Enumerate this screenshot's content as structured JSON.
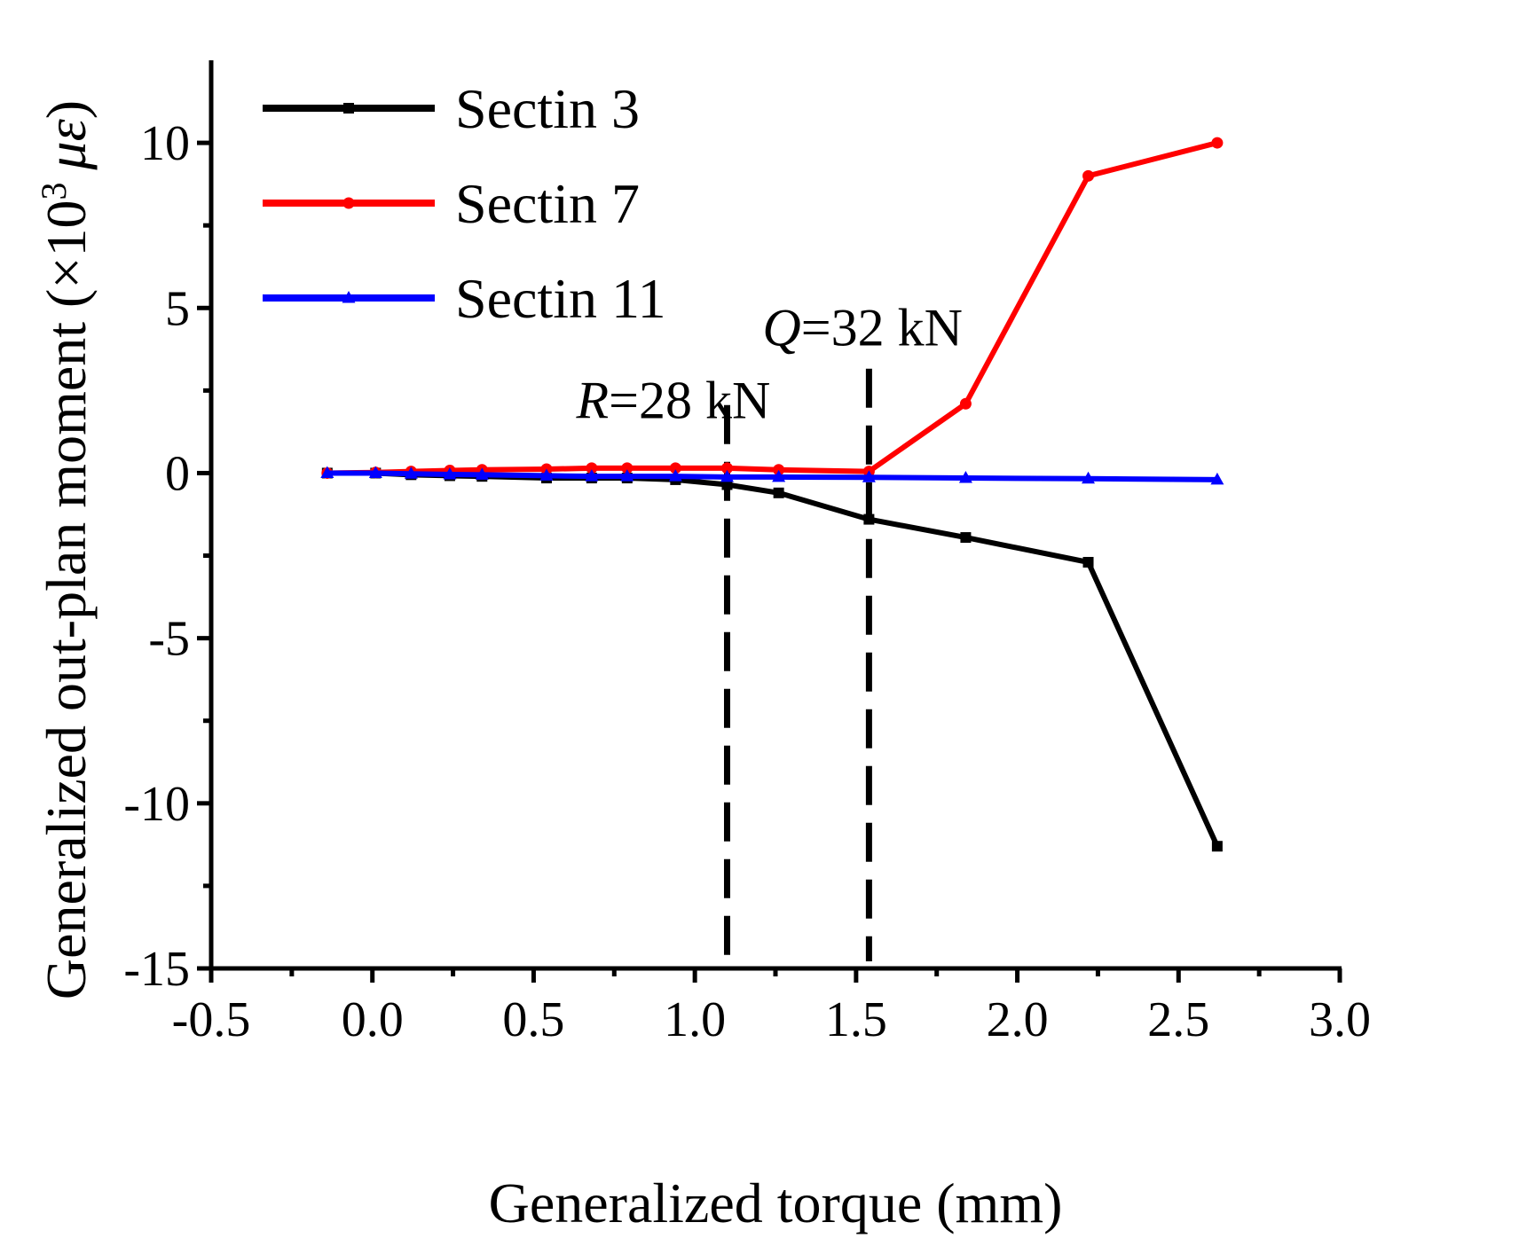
{
  "chart_data": {
    "type": "line",
    "xlabel": "Generalized torque (mm)",
    "ylabel": {
      "main": "Generalized out-plan moment (×10",
      "exponent": "3",
      "unit": "με",
      "close": ")"
    },
    "xlim": [
      -0.5,
      3.0
    ],
    "ylim": [
      -15,
      12.5
    ],
    "xticks": [
      -0.5,
      0.0,
      0.5,
      1.0,
      1.5,
      2.0,
      2.5,
      3.0
    ],
    "xtick_labels": [
      "-0.5",
      "0.0",
      "0.5",
      "1.0",
      "1.5",
      "2.0",
      "2.5",
      "3.0"
    ],
    "yticks": [
      -15,
      -10,
      -5,
      0,
      5,
      10
    ],
    "ytick_labels": [
      "-15",
      "-10",
      "-5",
      "0",
      "5",
      "10"
    ],
    "grid": false,
    "legend_position": "top-left",
    "series": [
      {
        "name": "Sectin 3",
        "color": "#000000",
        "marker": "square",
        "x": [
          -0.14,
          0.01,
          0.12,
          0.24,
          0.34,
          0.54,
          0.68,
          0.79,
          0.94,
          1.1,
          1.26,
          1.54,
          1.84,
          2.22,
          2.62
        ],
        "y": [
          0.0,
          0.0,
          -0.05,
          -0.08,
          -0.1,
          -0.15,
          -0.15,
          -0.15,
          -0.2,
          -0.35,
          -0.6,
          -1.4,
          -1.95,
          -2.7,
          -11.3
        ]
      },
      {
        "name": "Sectin 7",
        "color": "#ff0000",
        "marker": "circle",
        "x": [
          -0.14,
          0.01,
          0.12,
          0.24,
          0.34,
          0.54,
          0.68,
          0.79,
          0.94,
          1.1,
          1.26,
          1.54,
          1.84,
          2.22,
          2.62
        ],
        "y": [
          0.0,
          0.02,
          0.05,
          0.08,
          0.1,
          0.12,
          0.15,
          0.15,
          0.15,
          0.15,
          0.1,
          0.05,
          2.1,
          9.0,
          10.0
        ]
      },
      {
        "name": "Sectin 11",
        "color": "#0000ff",
        "marker": "triangle",
        "x": [
          -0.14,
          0.01,
          0.12,
          0.24,
          0.34,
          0.54,
          0.68,
          0.79,
          0.94,
          1.1,
          1.26,
          1.54,
          1.84,
          2.22,
          2.62
        ],
        "y": [
          0.0,
          0.0,
          -0.02,
          -0.04,
          -0.05,
          -0.08,
          -0.1,
          -0.1,
          -0.1,
          -0.12,
          -0.12,
          -0.13,
          -0.15,
          -0.17,
          -0.2
        ]
      }
    ],
    "annotations": [
      {
        "italic": "R",
        "text": "=28 kN",
        "x": 1.1
      },
      {
        "italic": "Q",
        "text": "=32 kN",
        "x": 1.54
      }
    ]
  }
}
